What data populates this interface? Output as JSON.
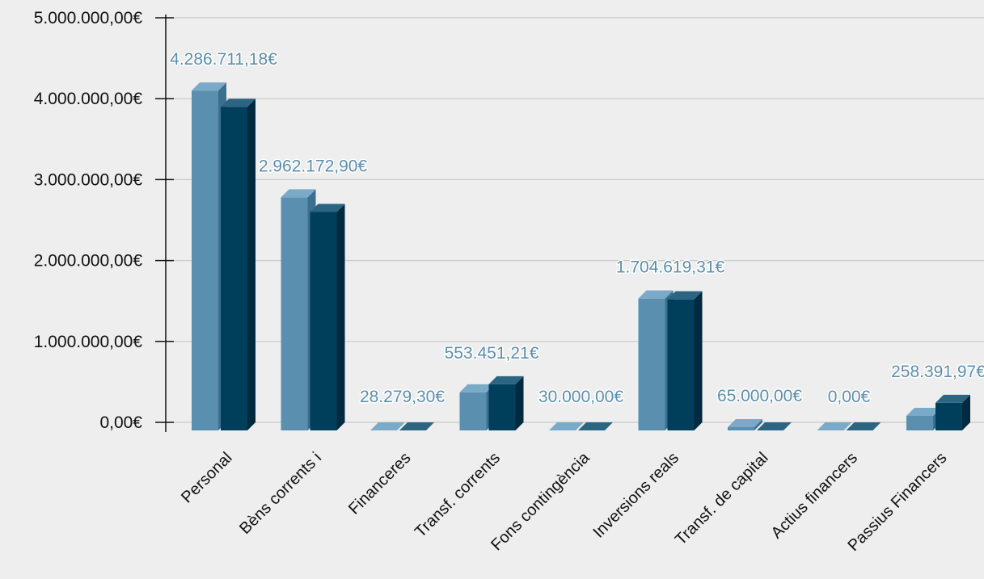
{
  "chart_data": {
    "type": "bar",
    "categories": [
      "Personal",
      "Bèns corrents i",
      "Financeres",
      "Transf. corrents",
      "Fons contingència",
      "Inversions reals",
      "Transf. de capital",
      "Actius financers",
      "Passius Financers"
    ],
    "series": [
      {
        "color": "#5b8fb0",
        "values": [
          4200000,
          2880000,
          0,
          470000,
          0,
          1630000,
          40000,
          0,
          180000
        ]
      },
      {
        "color": "#003f5c",
        "values": [
          4000000,
          2700000,
          0,
          570000,
          0,
          1620000,
          0,
          0,
          340000
        ]
      }
    ],
    "data_labels": [
      "4.286.711,18€",
      "2.962.172,90€",
      "28.279,30€",
      "553.451,21€",
      "30.000,00€",
      "1.704.619,31€",
      "65.000,00€",
      "0,00€",
      "258.391,97€"
    ],
    "ylim": [
      0,
      5000000
    ],
    "yticks": [
      0,
      1000000,
      2000000,
      3000000,
      4000000,
      5000000
    ],
    "ytick_labels": [
      "0,00€",
      "1.000.000,00€",
      "2.000.000,00€",
      "3.000.000,00€",
      "4.000.000,00€",
      "5.000.000,00€"
    ],
    "grid": true,
    "legend": "none",
    "title": "",
    "xlabel": "",
    "ylabel": ""
  }
}
